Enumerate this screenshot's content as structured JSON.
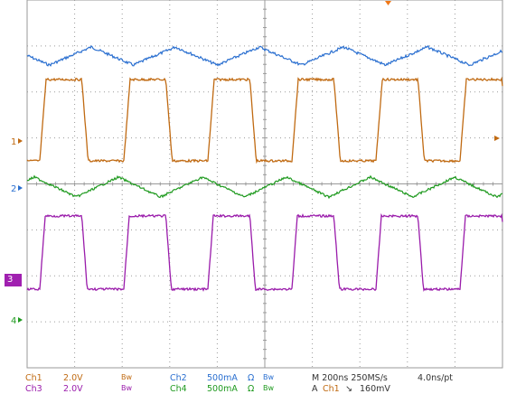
{
  "colors": {
    "ch1": "#c06a12",
    "ch2": "#2a6fd0",
    "ch3": "#9a1cab",
    "ch4": "#1f9a1f",
    "grid": "#9a9a9a",
    "marker_label": "#c06a12"
  },
  "channels": [
    {
      "id": "ch1",
      "marker": "1",
      "label": "Ch1",
      "scale": "2.0V",
      "bw": "Bw",
      "description": "square wave, orange"
    },
    {
      "id": "ch2",
      "marker": "2",
      "label": "Ch2",
      "scale": "500mA",
      "ohm": "Ω",
      "bw": "Bw",
      "description": "triangle current, blue"
    },
    {
      "id": "ch3",
      "marker": "3",
      "label": "Ch3",
      "scale": "2.0V",
      "bw": "Bw",
      "description": "square wave, purple"
    },
    {
      "id": "ch4",
      "marker": "4",
      "label": "Ch4",
      "scale": "500mA",
      "ohm": "Ω",
      "bw": "Bw",
      "description": "triangle current, green"
    }
  ],
  "status": {
    "ch1_label": "Ch1",
    "ch1_scale": "2.0V",
    "ch1_bw": "Bw",
    "ch2_label": "Ch2",
    "ch2_scale": "500mA",
    "ch2_ohm": "Ω",
    "ch2_bw": "Bw",
    "ch3_label": "Ch3",
    "ch3_scale": "2.0V",
    "ch3_bw": "Bw",
    "ch4_label": "Ch4",
    "ch4_scale": "500mA",
    "ch4_ohm": "Ω",
    "ch4_bw": "Bw",
    "timebase": "M 200ns 250MS/s",
    "resolution": "4.0ns/pt",
    "trigger_prefix": "A",
    "trigger_source": "Ch1",
    "trigger_slope": "↘",
    "trigger_level": "160mV"
  }
}
